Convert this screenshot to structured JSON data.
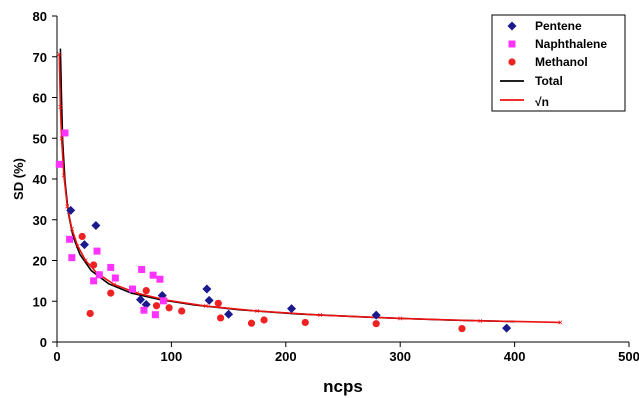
{
  "chart_data": {
    "type": "scatter",
    "xlabel": "ncps",
    "ylabel": "SD (%)",
    "xlim": [
      0,
      500
    ],
    "ylim": [
      0,
      80
    ],
    "x_ticks": [
      "0",
      "100",
      "200",
      "300",
      "400",
      "500"
    ],
    "y_ticks": [
      "0",
      "10",
      "20",
      "30",
      "40",
      "50",
      "60",
      "70",
      "80"
    ],
    "grid": false,
    "legend_position": "top-right",
    "series": [
      {
        "name": "Pentene",
        "kind": "points",
        "marker": "diamond",
        "color": "#1a1a8c",
        "points": [
          [
            12,
            32.3
          ],
          [
            24,
            23.9
          ],
          [
            34,
            28.6
          ],
          [
            73,
            10.4
          ],
          [
            78,
            9.2
          ],
          [
            92,
            11.4
          ],
          [
            131,
            13
          ],
          [
            133,
            10.2
          ],
          [
            150,
            6.8
          ],
          [
            205,
            8.2
          ],
          [
            279,
            6.6
          ],
          [
            393,
            3.4
          ]
        ]
      },
      {
        "name": "Naphthalene",
        "kind": "points",
        "marker": "square",
        "color": "#ff33ff",
        "points": [
          [
            2,
            43.6
          ],
          [
            7,
            51.3
          ],
          [
            11,
            25.2
          ],
          [
            13,
            20.7
          ],
          [
            32,
            15
          ],
          [
            35,
            22.3
          ],
          [
            37,
            16.5
          ],
          [
            47,
            18.3
          ],
          [
            51,
            15.7
          ],
          [
            66,
            13
          ],
          [
            74,
            17.8
          ],
          [
            76,
            7.8
          ],
          [
            84,
            16.4
          ],
          [
            86,
            6.7
          ],
          [
            90,
            15.4
          ],
          [
            93,
            10.1
          ]
        ]
      },
      {
        "name": "Methanol",
        "kind": "points",
        "marker": "circle",
        "color": "#ee2222",
        "points": [
          [
            22,
            25.9
          ],
          [
            29,
            7
          ],
          [
            32,
            18.9
          ],
          [
            47,
            12
          ],
          [
            78,
            12.6
          ],
          [
            87,
            8.9
          ],
          [
            98,
            8.4
          ],
          [
            109,
            7.6
          ],
          [
            141,
            9.5
          ],
          [
            143,
            5.9
          ],
          [
            170,
            4.6
          ],
          [
            181,
            5.4
          ],
          [
            217,
            4.8
          ],
          [
            279,
            4.5
          ],
          [
            354,
            3.3
          ]
        ]
      },
      {
        "name": "Total",
        "kind": "line",
        "color": "#000000",
        "x": [
          3,
          4,
          5,
          7,
          10,
          14,
          20,
          30,
          45,
          65,
          90,
          120,
          160,
          210,
          270,
          340,
          400
        ],
        "y": [
          72,
          59,
          49,
          39.5,
          31.5,
          26,
          21.5,
          17.5,
          14.3,
          12,
          10.4,
          9.1,
          7.9,
          6.9,
          6.1,
          5.4,
          5
        ]
      },
      {
        "name": "√n",
        "kind": "line",
        "color": "#ee1111",
        "x": [
          2,
          3,
          4,
          6,
          9,
          13,
          18,
          25,
          35,
          50,
          70,
          95,
          130,
          175,
          230,
          300,
          370,
          440
        ],
        "y": [
          70.7,
          57.7,
          50,
          40.8,
          33.3,
          27.7,
          23.6,
          20,
          16.9,
          14.1,
          12,
          10.3,
          8.8,
          7.6,
          6.6,
          5.8,
          5.2,
          4.8
        ]
      }
    ]
  }
}
